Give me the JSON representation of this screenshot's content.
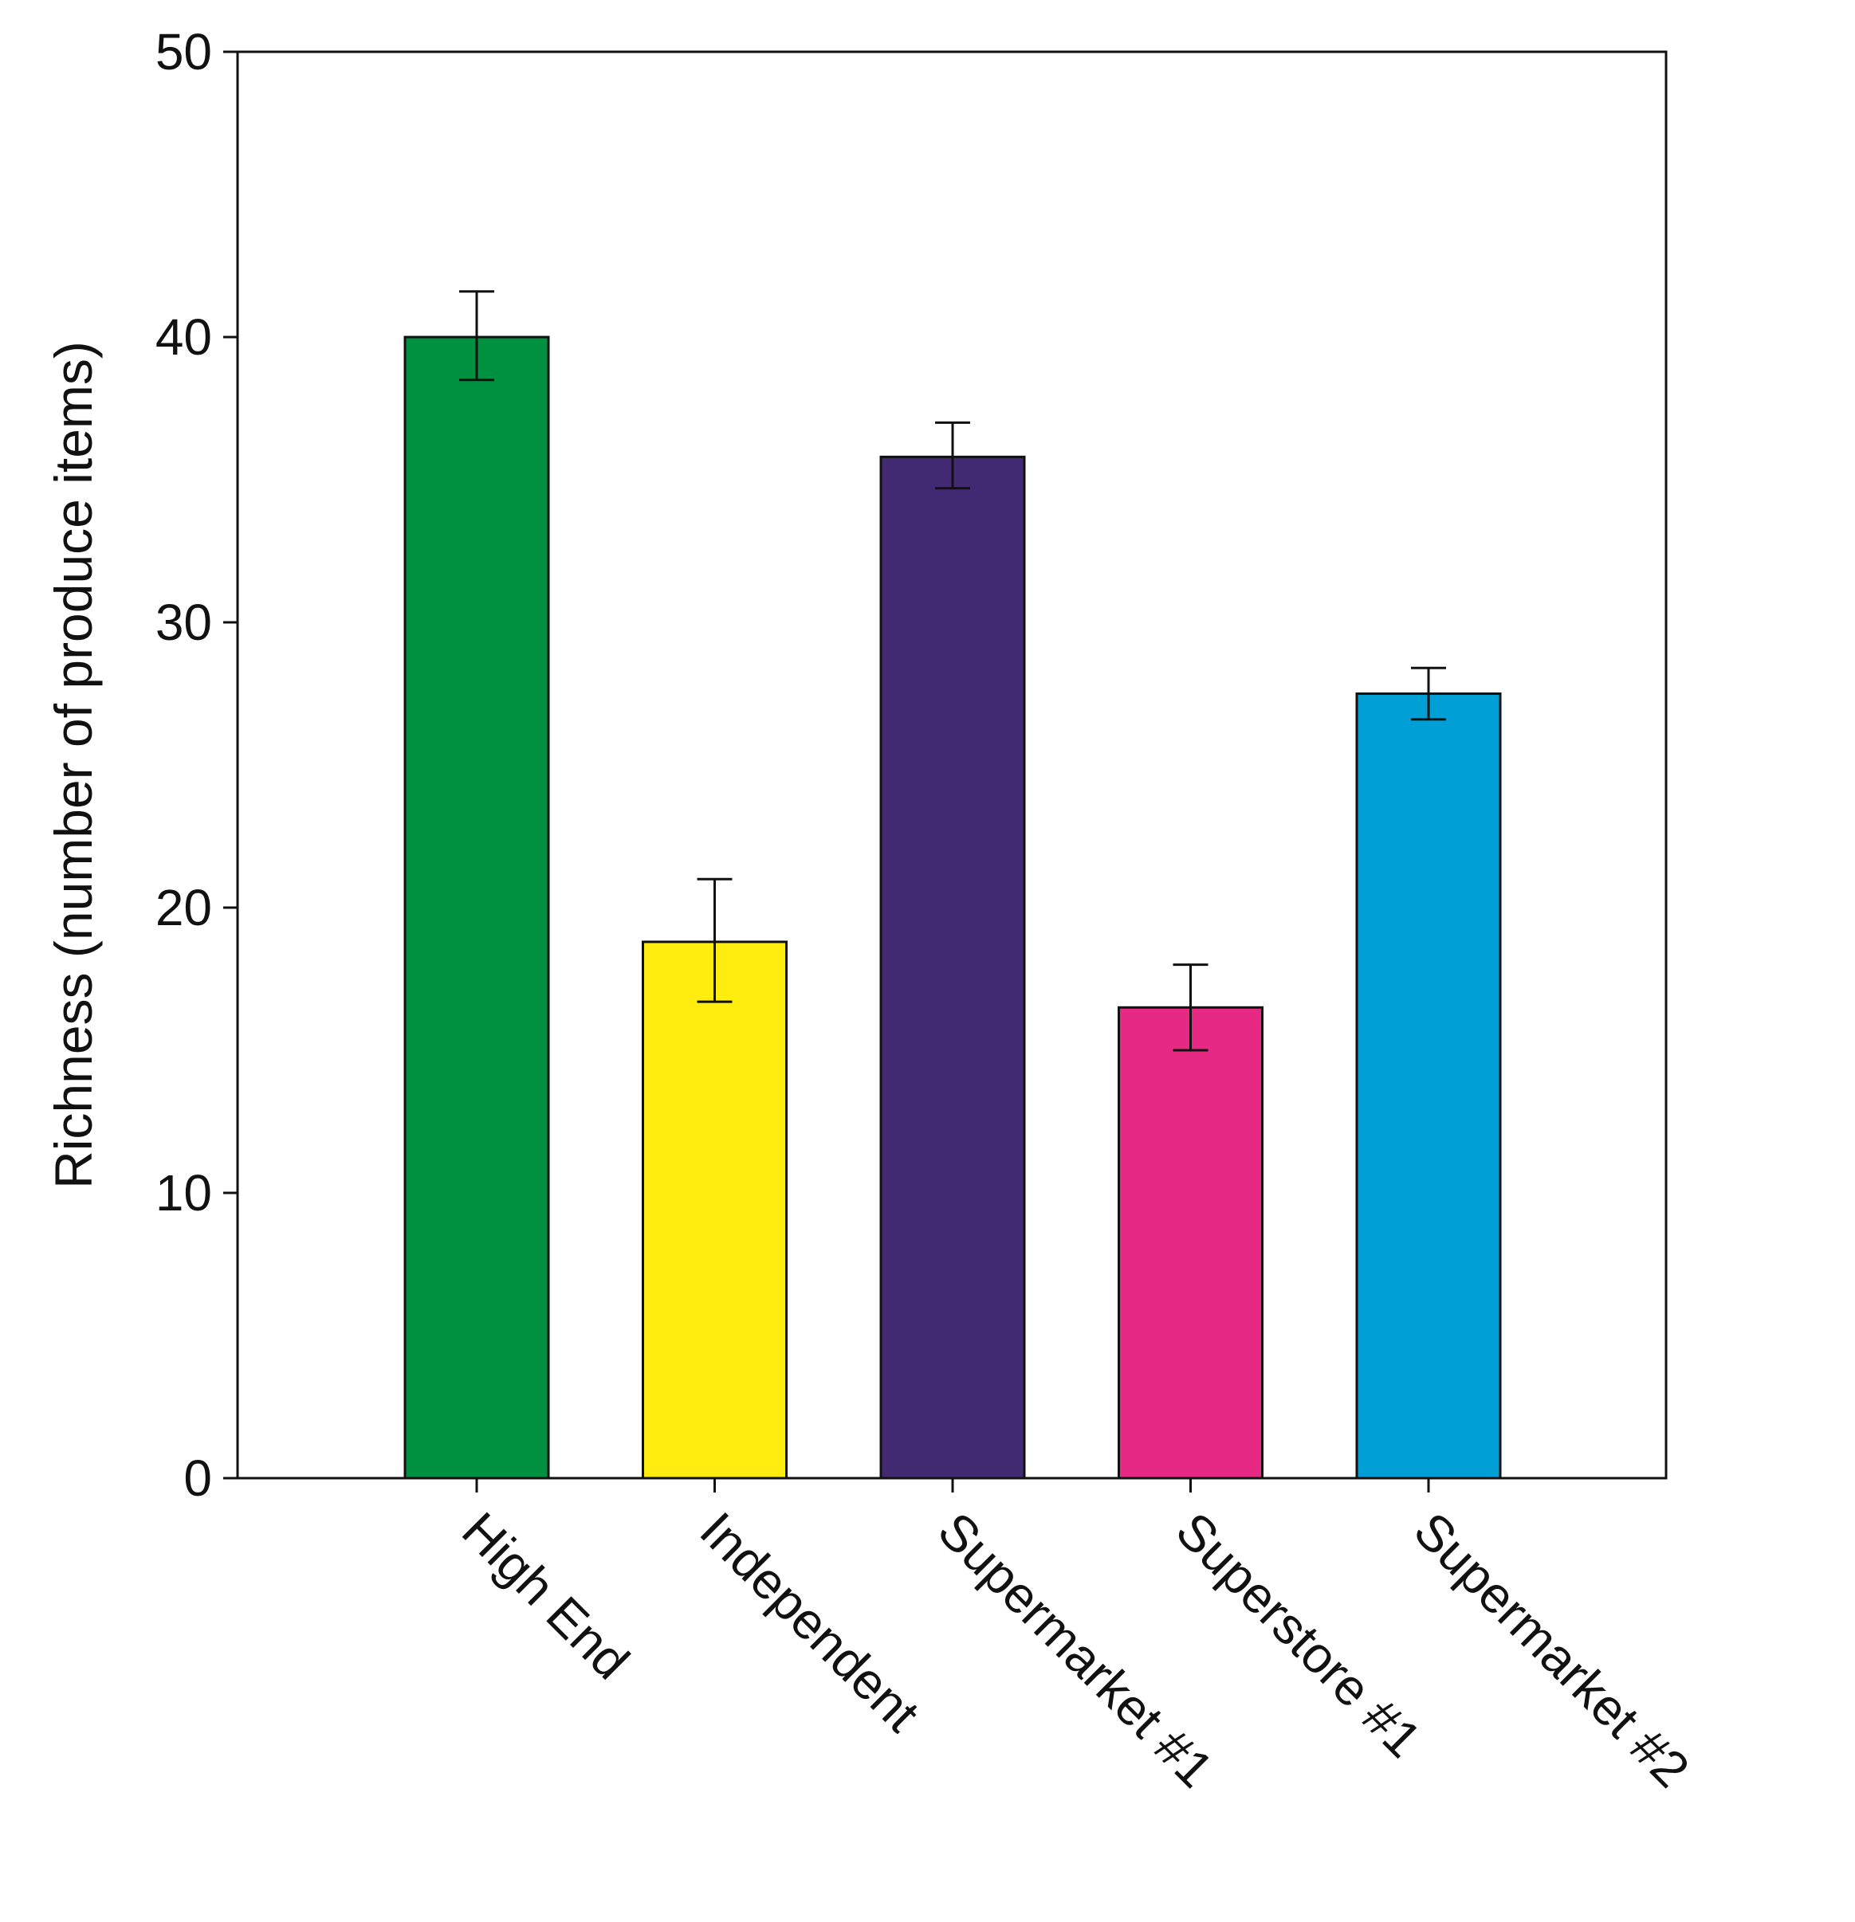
{
  "chart_data": {
    "type": "bar",
    "title": "",
    "xlabel": "",
    "ylabel": "Richness (number of produce items)",
    "ylim": [
      0,
      50
    ],
    "yticks": [
      0,
      10,
      20,
      30,
      40,
      50
    ],
    "grid": false,
    "legend": "none",
    "categories": [
      "High End",
      "Independent",
      "Supermarket #1",
      "Superstore #1",
      "Supermarket #2"
    ],
    "values": [
      40.0,
      18.8,
      35.8,
      16.5,
      27.5
    ],
    "error_low": [
      38.5,
      16.7,
      34.7,
      15.0,
      26.6
    ],
    "error_high": [
      41.6,
      21.0,
      37.0,
      18.0,
      28.4
    ],
    "colors": [
      "#009140",
      "#FFED10",
      "#422A72",
      "#E62983",
      "#009FD6"
    ]
  }
}
